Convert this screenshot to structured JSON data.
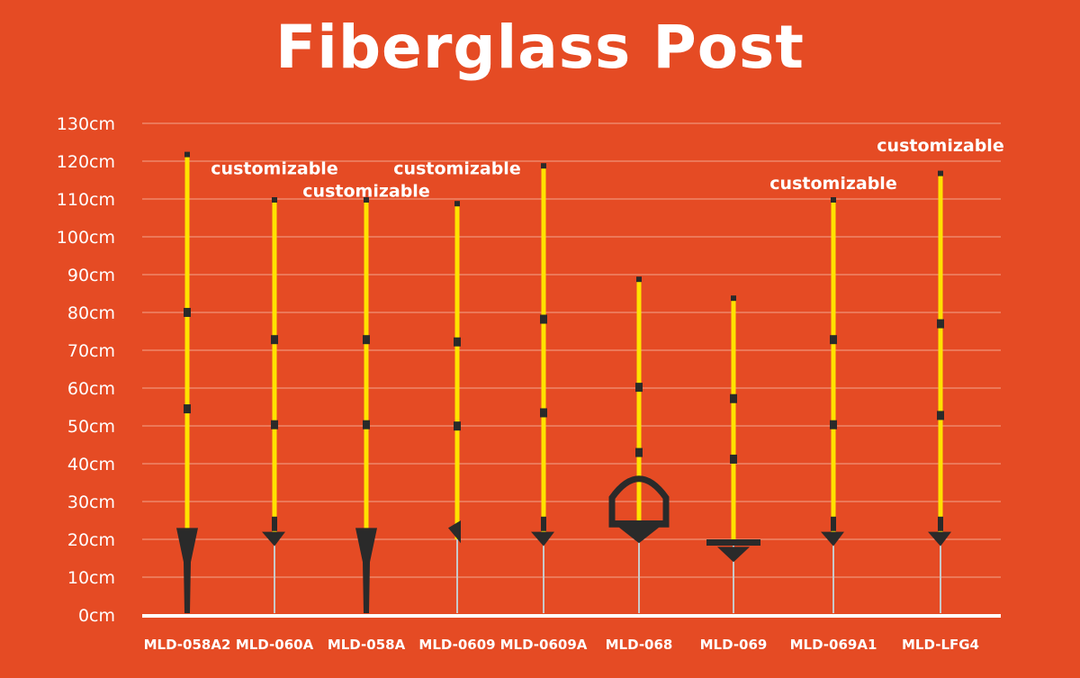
{
  "chart_data": {
    "type": "bar",
    "title": "Fiberglass Post",
    "xlabel": "",
    "ylabel": "",
    "ylim": [
      0,
      130
    ],
    "y_ticks": [
      {
        "value": 0,
        "label": "0cm"
      },
      {
        "value": 10,
        "label": "10cm"
      },
      {
        "value": 20,
        "label": "20cm"
      },
      {
        "value": 30,
        "label": "30cm"
      },
      {
        "value": 40,
        "label": "40cm"
      },
      {
        "value": 50,
        "label": "50cm"
      },
      {
        "value": 60,
        "label": "60cm"
      },
      {
        "value": 70,
        "label": "70cm"
      },
      {
        "value": 80,
        "label": "80cm"
      },
      {
        "value": 90,
        "label": "90cm"
      },
      {
        "value": 100,
        "label": "100cm"
      },
      {
        "value": 110,
        "label": "110cm"
      },
      {
        "value": 120,
        "label": "120cm"
      },
      {
        "value": 130,
        "label": "130cm"
      }
    ],
    "grid": true,
    "categories": [
      "MLD-058A2",
      "MLD-060A",
      "MLD-058A",
      "MLD-0609",
      "MLD-0609A",
      "MLD-068",
      "MLD-069",
      "MLD-069A1",
      "MLD-LFG4"
    ],
    "values": [
      122,
      110,
      110,
      109,
      119,
      89,
      84,
      110,
      117
    ],
    "annotations": [
      {
        "text": "customizable",
        "x": "MLD-060A",
        "y": 118
      },
      {
        "text": "customizable",
        "x": "MLD-058A",
        "y": 112
      },
      {
        "text": "customizable",
        "x": "MLD-0609",
        "y": 118
      },
      {
        "text": "customizable",
        "x": "MLD-069A1",
        "y": 114
      },
      {
        "text": "customizable",
        "x": "MLD-LFG4",
        "y": 124
      }
    ],
    "colors": {
      "background": "#e54b24",
      "post": "#ffe200",
      "fitting": "#2a2a2a",
      "text": "#ffffff",
      "grid": "#f3a48d",
      "spike": "#c8c8c8"
    }
  }
}
